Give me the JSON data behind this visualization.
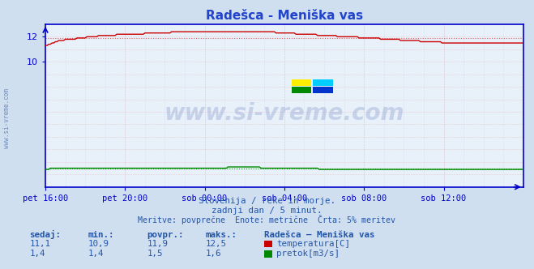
{
  "title": "Radešca - Meniška vas",
  "bg_color": "#d0dff0",
  "plot_bg_color": "#e8f0fa",
  "grid_color_minor": "#c8d4e8",
  "grid_color_major": "#e8b0b0",
  "x_labels": [
    "pet 16:00",
    "pet 20:00",
    "sob 00:00",
    "sob 04:00",
    "sob 08:00",
    "sob 12:00"
  ],
  "x_ticks_idx": [
    0,
    48,
    96,
    144,
    192,
    240
  ],
  "total_points": 289,
  "y_min": 0,
  "y_max": 13.0,
  "y_ticks": [
    10,
    12
  ],
  "temp_color": "#cc0000",
  "temp_avg_color": "#dd6666",
  "flow_color": "#008800",
  "flow_avg_color": "#00aa00",
  "axis_color": "#0000cc",
  "title_color": "#2244cc",
  "text_color": "#2255aa",
  "watermark_color": "#4466aa",
  "subtitle_lines": [
    "Slovenija / reke in morje.",
    "zadnji dan / 5 minut.",
    "Meritve: povprečne  Enote: metrične  Črta: 5% meritev"
  ],
  "table_headers": [
    "sedaj:",
    "min.:",
    "povpr.:",
    "maks.:",
    "Radešca – Meniška vas"
  ],
  "table_row1": [
    "11,1",
    "10,9",
    "11,9",
    "12,5"
  ],
  "table_row2": [
    "1,4",
    "1,4",
    "1,5",
    "1,6"
  ],
  "legend1": "temperatura[C]",
  "legend2": "pretok[m3/s]",
  "temp_avg_value": 11.9,
  "flow_avg_value": 1.5
}
